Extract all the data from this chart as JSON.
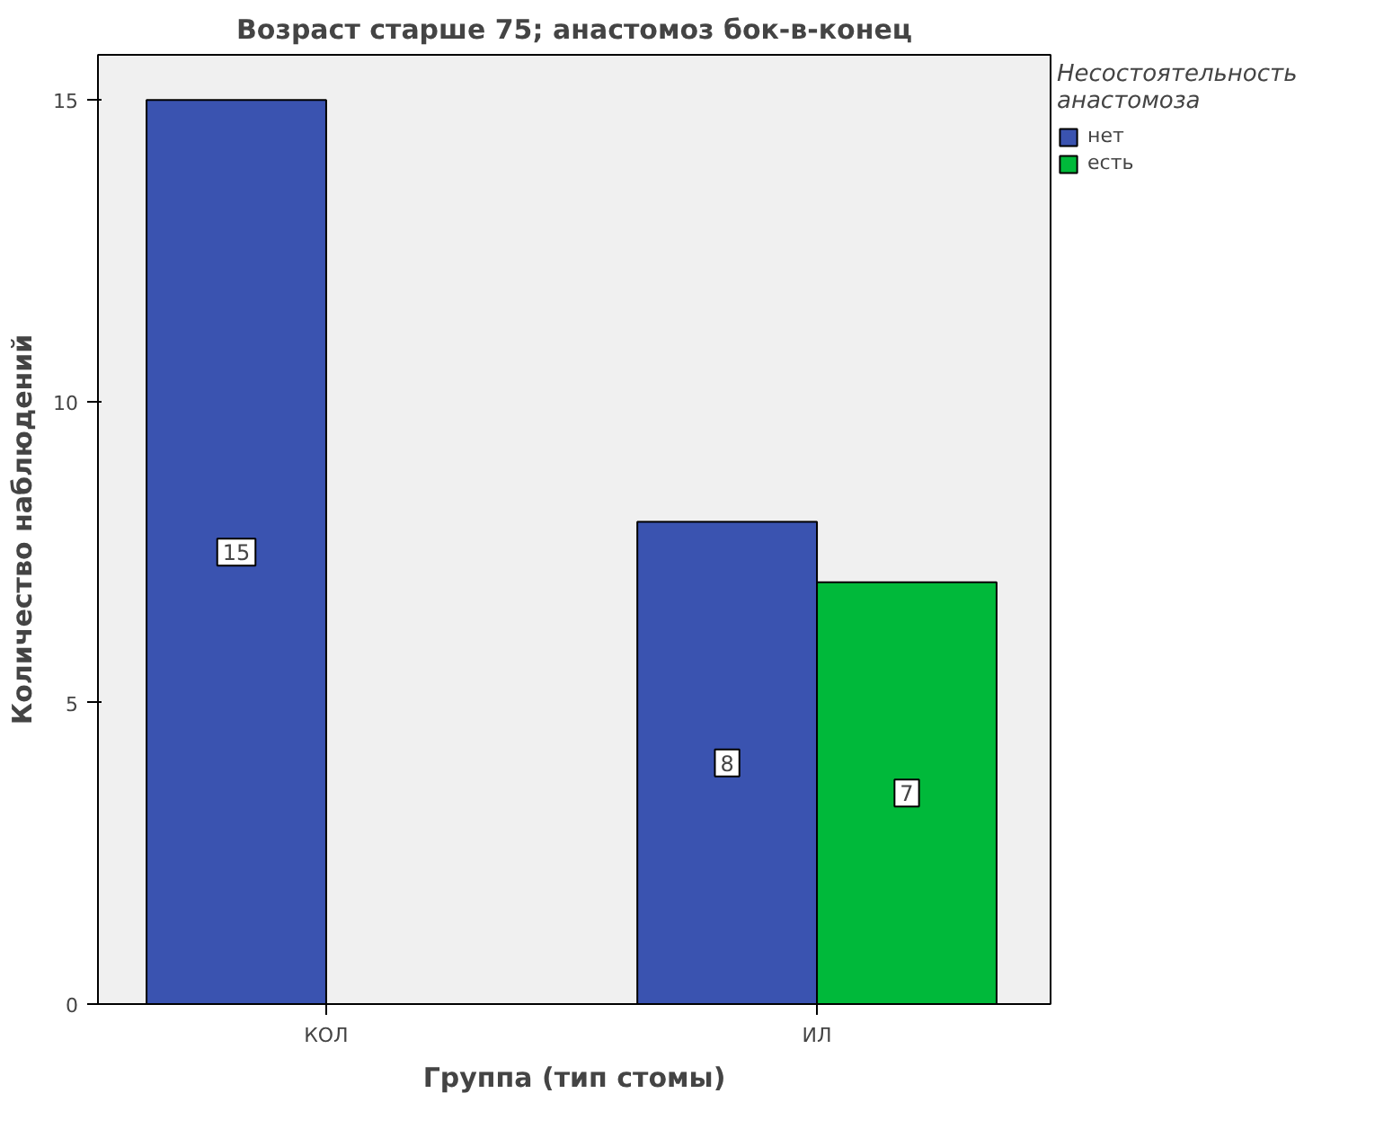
{
  "chart_data": {
    "type": "bar",
    "title": "Возраст старше 75; анастомоз бок-в-конец",
    "xlabel": "Группа (тип стомы)",
    "ylabel": "Количество наблюдений",
    "legend_title": "Несостоятельность анастомоза",
    "categories": [
      "КОЛ",
      "ИЛ"
    ],
    "series": [
      {
        "name": "нет",
        "color": "#3a53b0",
        "values": [
          15,
          8
        ]
      },
      {
        "name": "есть",
        "color": "#00b93a",
        "values": [
          null,
          7
        ]
      }
    ],
    "ylim": [
      0,
      15.75
    ],
    "yticks": [
      0,
      5,
      10,
      15
    ],
    "grid": false,
    "legend": "top right",
    "data_labels": true
  }
}
